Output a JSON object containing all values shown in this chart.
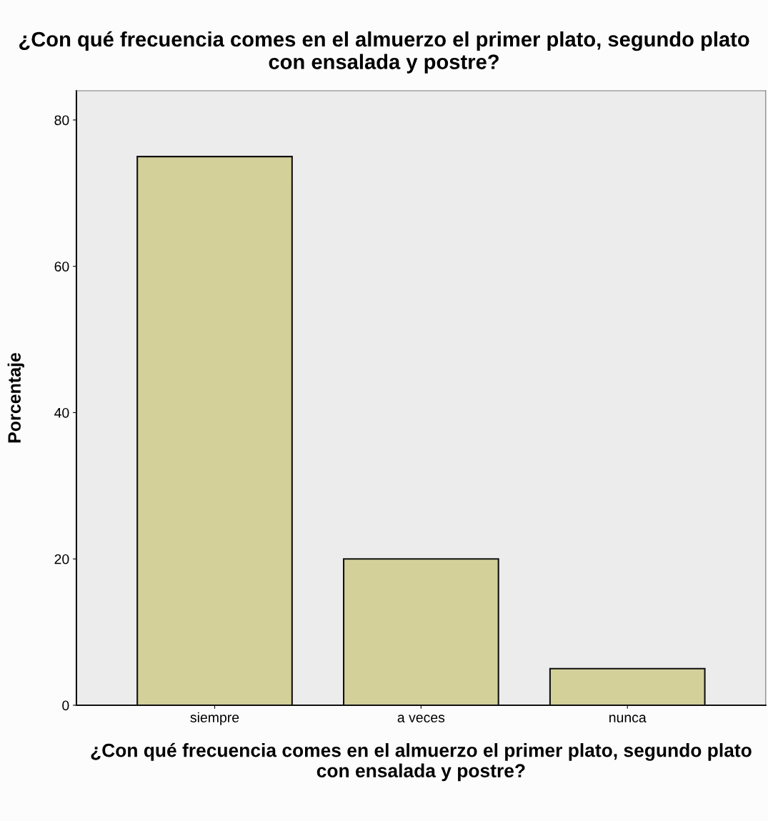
{
  "chart_data": {
    "type": "bar",
    "title": "¿Con qué frecuencia comes en el almuerzo el primer plato, segundo plato con ensalada y postre?",
    "xlabel": "¿Con qué frecuencia comes en el almuerzo el primer plato, segundo plato\ncon ensalada y postre?",
    "ylabel": "Porcentaje",
    "categories": [
      "siempre",
      "a veces",
      "nunca"
    ],
    "values": [
      75,
      20,
      5
    ],
    "color": "#d3d09a",
    "ylim": [
      0,
      84
    ],
    "yticks": [
      0,
      20,
      40,
      60,
      80
    ],
    "grid": false,
    "legend": false
  }
}
